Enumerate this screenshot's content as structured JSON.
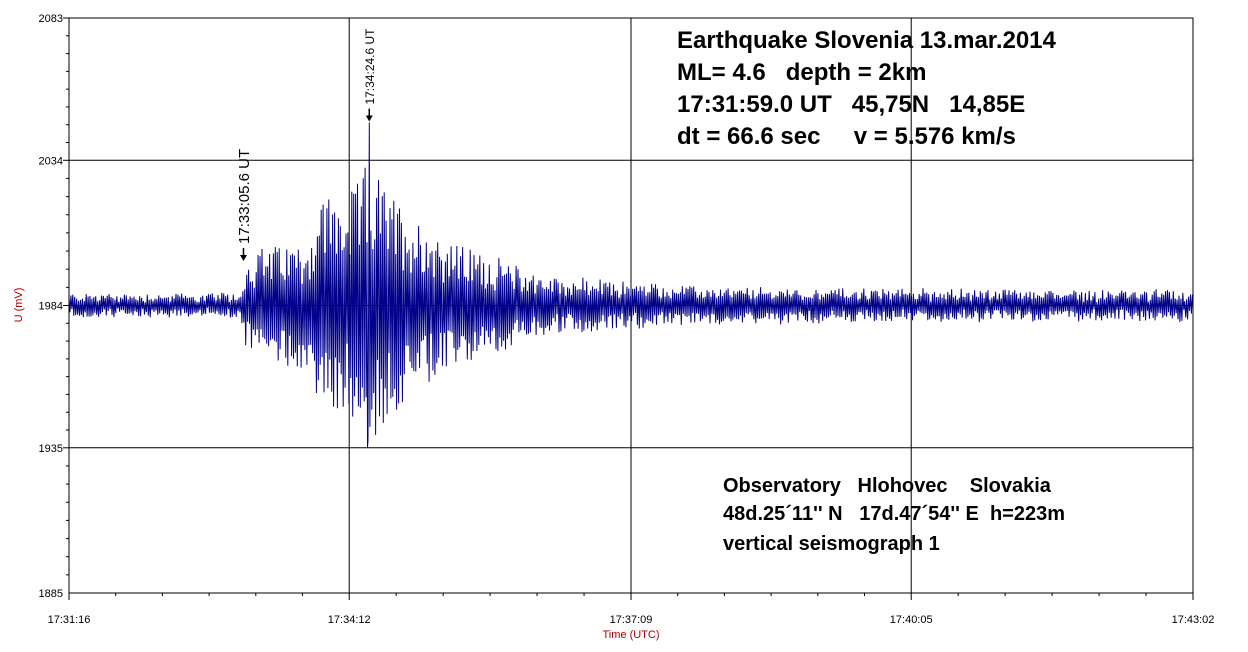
{
  "chart_data": {
    "type": "line",
    "title": "Earthquake Slovenia 13.mar.2014",
    "xlabel": "Time (UTC)",
    "ylabel": "U (mV)",
    "x_range_seconds": [
      0,
      706
    ],
    "x_ticks": [
      {
        "label": "17:31:16",
        "t": 0
      },
      {
        "label": "17:34:12",
        "t": 176
      },
      {
        "label": "17:37:09",
        "t": 353
      },
      {
        "label": "17:40:05",
        "t": 529
      },
      {
        "label": "17:43:02",
        "t": 706
      }
    ],
    "ylim": [
      1885,
      2083
    ],
    "y_ticks": [
      2083,
      2034,
      1984,
      1935,
      1885
    ],
    "grid": true,
    "line_color": "#00008b",
    "baseline": 1984,
    "waveform": {
      "description_keyframes": "time in seconds from 17:31:16 and envelope amplitude in mV around baseline",
      "envelope": [
        {
          "t": 0,
          "amp": 4
        },
        {
          "t": 108,
          "amp": 4
        },
        {
          "t": 110,
          "amp": 14
        },
        {
          "t": 120,
          "amp": 20
        },
        {
          "t": 150,
          "amp": 22
        },
        {
          "t": 160,
          "amp": 40
        },
        {
          "t": 175,
          "amp": 36
        },
        {
          "t": 188,
          "amp": 50
        },
        {
          "t": 200,
          "amp": 40
        },
        {
          "t": 215,
          "amp": 32
        },
        {
          "t": 240,
          "amp": 22
        },
        {
          "t": 270,
          "amp": 16
        },
        {
          "t": 300,
          "amp": 10
        },
        {
          "t": 353,
          "amp": 8
        },
        {
          "t": 400,
          "amp": 6
        },
        {
          "t": 706,
          "amp": 5
        }
      ],
      "peak_max": {
        "t": 188.6,
        "value": 2047
      },
      "peak_min": {
        "t": 187.5,
        "value": 1935
      }
    },
    "markers": [
      {
        "label": "17:33:05.6 UT",
        "t": 109.6,
        "value": 1999
      },
      {
        "label": "17:34:24.6 UT",
        "t": 188.6,
        "value": 2047
      }
    ],
    "annotations": {
      "event_lines": [
        "Earthquake Slovenia 13.mar.2014",
        "ML= 4.6   depth = 2km",
        "17:31:59.0 UT   45,75N   14,85E",
        "dt = 66.6 sec     v = 5.576 km/s"
      ],
      "station_lines": [
        "Observatory   Hlohovec    Slovakia",
        "48d.25´11'' N   17d.47´54'' E  h=223m",
        "vertical seismograph 1"
      ]
    }
  }
}
